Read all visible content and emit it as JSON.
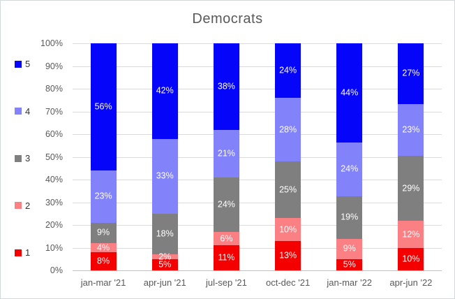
{
  "chart_data": {
    "type": "bar",
    "variant": "stacked-100-percent",
    "title": "Democrats",
    "categories": [
      "jan-mar '21",
      "apr-jun '21",
      "jul-sep '21",
      "oct-dec '21",
      "jan-mar '22",
      "apr-jun '22"
    ],
    "series": [
      {
        "name": "1",
        "color": "#f50000",
        "values": [
          8,
          5,
          11,
          13,
          5,
          10
        ]
      },
      {
        "name": "2",
        "color": "#fa8084",
        "values": [
          4,
          2,
          6,
          10,
          9,
          12
        ]
      },
      {
        "name": "3",
        "color": "#7f7f7f",
        "values": [
          9,
          18,
          24,
          25,
          19,
          29
        ]
      },
      {
        "name": "4",
        "color": "#8282fa",
        "values": [
          23,
          33,
          21,
          28,
          24,
          23
        ]
      },
      {
        "name": "5",
        "color": "#0505fa",
        "values": [
          56,
          42,
          38,
          24,
          44,
          27
        ]
      }
    ],
    "data_label_suffix": "%",
    "xlabel": "",
    "ylabel": "",
    "ylim": [
      0,
      100
    ],
    "y_ticks": [
      0,
      10,
      20,
      30,
      40,
      50,
      60,
      70,
      80,
      90,
      100
    ],
    "y_tick_labels": [
      "0%",
      "10%",
      "20%",
      "30%",
      "40%",
      "50%",
      "60%",
      "70%",
      "80%",
      "90%",
      "100%"
    ],
    "grid": true,
    "legend_position": "left-vertical",
    "legend_order_top_to_bottom": [
      "5",
      "4",
      "3",
      "2",
      "1"
    ],
    "colors": {
      "title_text": "#595959",
      "axis_text": "#595959",
      "legend_text": "#333333",
      "gridline": "#dadada",
      "axis_line": "#c2c2c2",
      "data_label_text": "#ffffff",
      "chart_border": "#d2d7da",
      "background": "#ffffff"
    }
  }
}
